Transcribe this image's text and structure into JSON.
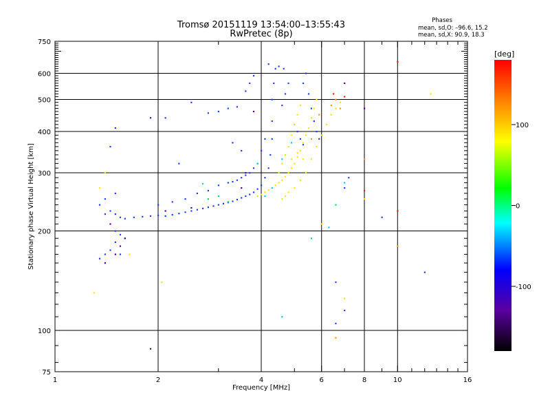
{
  "chart_data": {
    "type": "scatter",
    "title": "Tromsø 20151119 13:54:00–13:55:43",
    "subtitle": "RwPretec (8p)",
    "xlabel": "Frequency [MHz]",
    "ylabel": "Stationary phase Virtual Height [km]",
    "x_scale": "log",
    "y_scale": "log",
    "xlim": [
      1,
      16
    ],
    "ylim": [
      75,
      750
    ],
    "x_ticks": [
      {
        "value": 1,
        "label": "1"
      },
      {
        "value": 2,
        "label": "2"
      },
      {
        "value": 4,
        "label": "4"
      },
      {
        "value": 6,
        "label": "6"
      },
      {
        "value": 8,
        "label": "8"
      },
      {
        "value": 10,
        "label": "10"
      },
      {
        "value": 16,
        "label": "16"
      }
    ],
    "y_ticks": [
      {
        "value": 75,
        "label": "75"
      },
      {
        "value": 100,
        "label": "100"
      },
      {
        "value": 200,
        "label": "200"
      },
      {
        "value": 300,
        "label": "300"
      },
      {
        "value": 400,
        "label": "400"
      },
      {
        "value": 500,
        "label": "500"
      },
      {
        "value": 600,
        "label": "600"
      },
      {
        "value": 750,
        "label": "750"
      }
    ],
    "x_gridlines": [
      2,
      4,
      6,
      8,
      10
    ],
    "y_gridlines": [
      100,
      200,
      300,
      400,
      500,
      600
    ],
    "grid": true,
    "legend": {
      "title": "Phases",
      "line_o": "mean, sd,O: –96.6, 15.2",
      "line_x": "mean, sd,X:  90.9, 18.3",
      "placement": "top-right"
    },
    "colorbar": {
      "label": "[deg]",
      "range": [
        -180,
        180
      ],
      "ticks": [
        {
          "value": 100,
          "label": "100"
        },
        {
          "value": 0,
          "label": "0"
        },
        {
          "value": -100,
          "label": "-100"
        }
      ],
      "colors": [
        "#000000",
        "#5a00a0",
        "#0000ff",
        "#00ffff",
        "#00ff00",
        "#ffff00",
        "#ff8000",
        "#ff0000"
      ]
    },
    "series": [
      {
        "phase_deg": -100,
        "color": "#1f3fff",
        "points": [
          [
            1.9,
            222
          ],
          [
            2.0,
            223
          ],
          [
            2.1,
            222
          ],
          [
            2.2,
            224
          ],
          [
            2.3,
            226
          ],
          [
            2.4,
            228
          ],
          [
            2.5,
            230
          ],
          [
            2.6,
            232
          ],
          [
            2.7,
            234
          ],
          [
            2.8,
            236
          ],
          [
            2.9,
            238
          ],
          [
            3.0,
            240
          ],
          [
            3.1,
            242
          ],
          [
            3.2,
            244
          ],
          [
            3.3,
            246
          ],
          [
            3.4,
            249
          ],
          [
            3.5,
            252
          ],
          [
            3.6,
            255
          ],
          [
            3.7,
            258
          ],
          [
            3.8,
            262
          ],
          [
            3.9,
            268
          ],
          [
            4.0,
            275
          ],
          [
            4.1,
            290
          ],
          [
            4.2,
            310
          ],
          [
            4.25,
            340
          ],
          [
            4.3,
            380
          ],
          [
            4.3,
            430
          ],
          [
            4.3,
            500
          ],
          [
            4.35,
            560
          ],
          [
            4.4,
            620
          ],
          [
            4.2,
            640
          ],
          [
            4.5,
            630
          ],
          [
            4.1,
            380
          ],
          [
            4.0,
            350
          ],
          [
            3.9,
            320
          ],
          [
            3.8,
            310
          ],
          [
            3.7,
            300
          ],
          [
            3.6,
            295
          ],
          [
            3.5,
            290
          ],
          [
            3.4,
            285
          ],
          [
            3.3,
            282
          ],
          [
            3.2,
            280
          ],
          [
            3.0,
            275
          ],
          [
            2.8,
            265
          ],
          [
            2.6,
            260
          ],
          [
            2.4,
            250
          ],
          [
            2.2,
            245
          ],
          [
            2.0,
            240
          ],
          [
            3.4,
            475
          ],
          [
            3.2,
            470
          ],
          [
            3.0,
            460
          ],
          [
            2.8,
            455
          ],
          [
            3.6,
            530
          ],
          [
            3.7,
            560
          ],
          [
            3.8,
            590
          ],
          [
            5.3,
            560
          ],
          [
            5.4,
            600
          ],
          [
            5.5,
            520
          ],
          [
            5.6,
            470
          ],
          [
            5.7,
            430
          ],
          [
            5.8,
            400
          ],
          [
            5.9,
            380
          ],
          [
            5.0,
            420
          ],
          [
            5.1,
            400
          ],
          [
            5.2,
            380
          ],
          [
            5.3,
            365
          ],
          [
            1.4,
            225
          ],
          [
            1.45,
            230
          ],
          [
            1.5,
            225
          ],
          [
            1.55,
            220
          ],
          [
            1.6,
            218
          ],
          [
            1.7,
            220
          ],
          [
            1.8,
            221
          ],
          [
            1.35,
            240
          ],
          [
            1.4,
            250
          ],
          [
            1.5,
            260
          ],
          [
            1.55,
            195
          ],
          [
            1.5,
            185
          ],
          [
            1.45,
            175
          ],
          [
            1.4,
            170
          ],
          [
            1.35,
            165
          ],
          [
            1.5,
            200
          ],
          [
            1.6,
            190
          ],
          [
            1.55,
            170
          ],
          [
            1.45,
            360
          ],
          [
            1.5,
            410
          ],
          [
            4.6,
            480
          ],
          [
            4.7,
            520
          ],
          [
            4.8,
            560
          ],
          [
            4.65,
            620
          ],
          [
            2.3,
            320
          ],
          [
            2.1,
            440
          ],
          [
            2.5,
            490
          ],
          [
            3.3,
            370
          ],
          [
            3.5,
            350
          ],
          [
            6.6,
            105
          ],
          [
            6.6,
            140
          ],
          [
            7.0,
            115
          ],
          [
            7.2,
            290
          ],
          [
            7.0,
            270
          ],
          [
            9.0,
            220
          ],
          [
            12.0,
            150
          ]
        ]
      },
      {
        "phase_deg": 90,
        "color": "#ffe400",
        "points": [
          [
            3.9,
            255
          ],
          [
            4.0,
            258
          ],
          [
            4.1,
            262
          ],
          [
            4.2,
            266
          ],
          [
            4.3,
            270
          ],
          [
            4.4,
            275
          ],
          [
            4.5,
            280
          ],
          [
            4.6,
            285
          ],
          [
            4.7,
            292
          ],
          [
            4.8,
            300
          ],
          [
            4.9,
            310
          ],
          [
            5.0,
            320
          ],
          [
            5.1,
            335
          ],
          [
            5.2,
            350
          ],
          [
            5.3,
            370
          ],
          [
            5.4,
            390
          ],
          [
            5.5,
            410
          ],
          [
            5.6,
            440
          ],
          [
            5.7,
            470
          ],
          [
            5.8,
            500
          ],
          [
            4.5,
            300
          ],
          [
            4.6,
            320
          ],
          [
            4.7,
            340
          ],
          [
            4.8,
            360
          ],
          [
            4.9,
            390
          ],
          [
            5.0,
            420
          ],
          [
            5.1,
            450
          ],
          [
            5.2,
            480
          ],
          [
            4.6,
            250
          ],
          [
            4.7,
            255
          ],
          [
            4.8,
            262
          ],
          [
            5.0,
            270
          ],
          [
            5.2,
            285
          ],
          [
            5.4,
            300
          ],
          [
            5.6,
            330
          ],
          [
            5.8,
            360
          ],
          [
            6.0,
            390
          ],
          [
            6.2,
            420
          ],
          [
            6.4,
            450
          ],
          [
            6.6,
            470
          ],
          [
            6.8,
            490
          ],
          [
            4.9,
            330
          ],
          [
            5.1,
            345
          ],
          [
            5.3,
            330
          ],
          [
            1.35,
            270
          ],
          [
            1.4,
            300
          ],
          [
            1.3,
            130
          ],
          [
            2.05,
            140
          ],
          [
            1.65,
            170
          ],
          [
            6.0,
            210
          ],
          [
            7.0,
            125
          ],
          [
            8.0,
            250
          ],
          [
            12.5,
            520
          ],
          [
            6.6,
            95
          ]
        ]
      },
      {
        "phase_deg": 130,
        "color": "#ff9a00",
        "points": [
          [
            6.4,
            480
          ],
          [
            6.6,
            500
          ],
          [
            6.8,
            470
          ],
          [
            5.6,
            380
          ],
          [
            5.9,
            450
          ],
          [
            8.0,
            330
          ],
          [
            10.0,
            180
          ],
          [
            6.6,
            95
          ]
        ]
      },
      {
        "phase_deg": 170,
        "color": "#ff1a00",
        "points": [
          [
            10.0,
            650
          ],
          [
            10.0,
            230
          ],
          [
            6.5,
            520
          ],
          [
            8.0,
            265
          ],
          [
            7.0,
            510
          ]
        ]
      },
      {
        "phase_deg": 10,
        "color": "#00e070",
        "points": [
          [
            2.7,
            278
          ],
          [
            3.0,
            255
          ],
          [
            3.2,
            245
          ],
          [
            2.8,
            250
          ],
          [
            6.6,
            240
          ]
        ]
      },
      {
        "phase_deg": -50,
        "color": "#00c8ff",
        "points": [
          [
            4.1,
            255
          ],
          [
            4.3,
            270
          ],
          [
            4.6,
            330
          ],
          [
            4.9,
            370
          ],
          [
            5.6,
            190
          ],
          [
            4.6,
            110
          ],
          [
            3.9,
            320
          ],
          [
            6.3,
            205
          ],
          [
            7.0,
            280
          ]
        ]
      },
      {
        "phase_deg": -150,
        "color": "#55008c",
        "points": [
          [
            1.55,
            180
          ],
          [
            1.6,
            190
          ],
          [
            1.5,
            170
          ],
          [
            1.4,
            160
          ],
          [
            1.45,
            210
          ],
          [
            1.9,
            440
          ],
          [
            2.1,
            230
          ],
          [
            2.5,
            235
          ],
          [
            3.6,
            300
          ],
          [
            3.8,
            460
          ],
          [
            1.9,
            88
          ],
          [
            8.0,
            470
          ],
          [
            7.0,
            560
          ],
          [
            3.5,
            270
          ]
        ]
      }
    ]
  }
}
